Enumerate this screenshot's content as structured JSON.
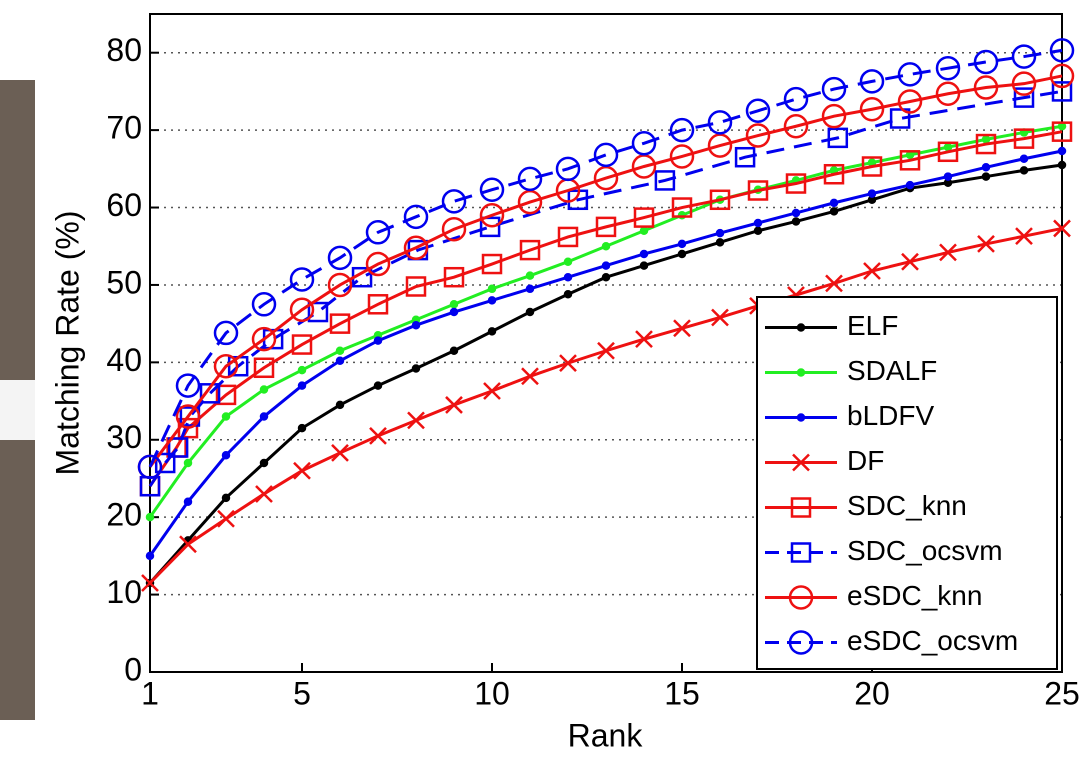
{
  "chart_data": {
    "type": "line",
    "xlabel": "Rank",
    "ylabel": "Matching Rate (%)",
    "xlim": [
      1,
      25
    ],
    "ylim": [
      0,
      85
    ],
    "xticks": [
      1,
      5,
      10,
      15,
      20,
      25
    ],
    "yticks": [
      0,
      10,
      20,
      30,
      40,
      50,
      60,
      70,
      80
    ],
    "grid": true,
    "legend": "lower right",
    "series": [
      {
        "name": "ELF",
        "color": "#000000",
        "marker": "dot",
        "dash": false,
        "x": [
          1,
          2,
          3,
          4,
          5,
          6,
          7,
          8,
          9,
          10,
          11,
          12,
          13,
          14,
          15,
          16,
          17,
          18,
          19,
          20,
          21,
          22,
          23,
          24,
          25
        ],
        "values": [
          11.5,
          17,
          22.5,
          27,
          31.5,
          34.5,
          37,
          39.2,
          41.5,
          44,
          46.5,
          48.8,
          51,
          52.5,
          54,
          55.5,
          57,
          58.2,
          59.5,
          61,
          62.5,
          63.2,
          64,
          64.8,
          65.5
        ]
      },
      {
        "name": "SDALF",
        "color": "#22ee22",
        "marker": "dot",
        "dash": false,
        "x": [
          1,
          2,
          3,
          4,
          5,
          6,
          7,
          8,
          9,
          10,
          11,
          12,
          13,
          14,
          15,
          16,
          17,
          18,
          19,
          20,
          21,
          22,
          23,
          24,
          25
        ],
        "values": [
          20,
          27,
          33,
          36.5,
          39,
          41.5,
          43.5,
          45.5,
          47.5,
          49.5,
          51.2,
          53,
          55,
          57,
          59,
          61,
          62.3,
          63.5,
          64.8,
          65.8,
          66.8,
          67.8,
          68.8,
          69.7,
          70.5
        ]
      },
      {
        "name": "bLDFV",
        "color": "#0000ee",
        "marker": "dot",
        "dash": false,
        "x": [
          1,
          2,
          3,
          4,
          5,
          6,
          7,
          8,
          9,
          10,
          11,
          12,
          13,
          14,
          15,
          16,
          17,
          18,
          19,
          20,
          21,
          22,
          23,
          24,
          25
        ],
        "values": [
          15,
          22,
          28,
          33,
          37,
          40.2,
          42.8,
          44.8,
          46.5,
          48,
          49.5,
          51,
          52.5,
          54,
          55.3,
          56.7,
          58,
          59.3,
          60.6,
          61.8,
          62.9,
          64,
          65.2,
          66.3,
          67.3
        ]
      },
      {
        "name": "DF",
        "color": "#ee1111",
        "marker": "x",
        "dash": false,
        "x": [
          1,
          2,
          3,
          4,
          5,
          6,
          7,
          8,
          9,
          10,
          11,
          12,
          13,
          14,
          15,
          16,
          17,
          18,
          19,
          20,
          21,
          22,
          23,
          24,
          25
        ],
        "values": [
          11.5,
          16.5,
          19.8,
          23,
          26,
          28.3,
          30.5,
          32.5,
          34.5,
          36.3,
          38.2,
          39.9,
          41.5,
          43,
          44.4,
          45.8,
          47.3,
          48.7,
          50.2,
          51.8,
          53,
          54.2,
          55.3,
          56.3,
          57.3
        ]
      },
      {
        "name": "SDC_knn",
        "color": "#ee1111",
        "marker": "square",
        "dash": false,
        "x": [
          1,
          1.7,
          2,
          3,
          4,
          5,
          6,
          7,
          8,
          9,
          10,
          11,
          12,
          13,
          14,
          15,
          16,
          17,
          18,
          19,
          20,
          21,
          22,
          23,
          24,
          25
        ],
        "values": [
          24,
          29,
          31.5,
          35.8,
          39.3,
          42.3,
          45,
          47.5,
          49.8,
          51,
          52.7,
          54.5,
          56.2,
          57.5,
          58.7,
          60,
          61,
          62.2,
          63.1,
          64.3,
          65.3,
          66.1,
          67.2,
          68.2,
          68.9,
          69.8
        ]
      },
      {
        "name": "SDC_ocsvm",
        "color": "#0000ee",
        "marker": "square",
        "dash": true,
        "x": [
          1,
          1.4,
          1.74,
          2.05,
          2.58,
          3.32,
          4.24,
          5.42,
          6.58,
          8.05,
          9.95,
          12.26,
          14.55,
          16.66,
          19.1,
          20.74,
          24,
          25
        ],
        "values": [
          24,
          27,
          29,
          33,
          36,
          39.5,
          43,
          46.5,
          51,
          54.5,
          57.5,
          61,
          63.5,
          66.5,
          69,
          71.5,
          74.2,
          75
        ]
      },
      {
        "name": "eSDC_knn",
        "color": "#ee1111",
        "marker": "circle",
        "dash": false,
        "x": [
          1,
          2,
          3,
          4,
          5,
          6,
          7,
          8,
          9,
          10,
          11,
          12,
          13,
          14,
          15,
          16,
          17,
          18,
          19,
          20,
          21,
          22,
          23,
          24,
          25
        ],
        "values": [
          26.5,
          33,
          39.5,
          43,
          46.8,
          50,
          52.7,
          54.8,
          57.2,
          59,
          60.7,
          62.2,
          63.8,
          65.3,
          66.6,
          68,
          69.3,
          70.5,
          71.8,
          72.7,
          73.7,
          74.7,
          75.5,
          76,
          77
        ]
      },
      {
        "name": "eSDC_ocsvm",
        "color": "#0000ee",
        "marker": "circle",
        "dash": true,
        "x": [
          1,
          2,
          3,
          4,
          5,
          6,
          7,
          8,
          9,
          10,
          11,
          12,
          13,
          14,
          15,
          16,
          17,
          18,
          19,
          20,
          21,
          22,
          23,
          24,
          25
        ],
        "values": [
          26.5,
          37,
          43.8,
          47.5,
          50.7,
          53.5,
          56.8,
          58.8,
          60.8,
          62.3,
          63.7,
          65,
          66.8,
          68.3,
          70,
          71,
          72.5,
          74,
          75.3,
          76.3,
          77.2,
          78,
          78.8,
          79.5,
          80.3
        ]
      }
    ]
  }
}
